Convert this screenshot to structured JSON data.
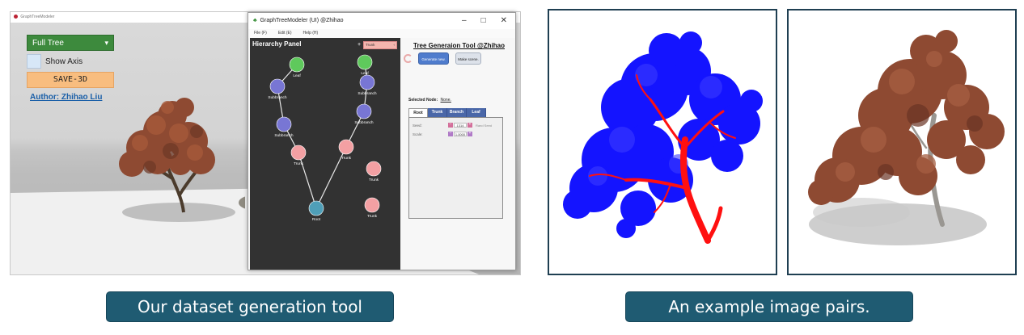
{
  "scene": {
    "window_title": "GraphTreeModeler",
    "mode_dropdown": "Full Tree",
    "show_axis_label": "Show Axis",
    "save_button": "SAVE-3D",
    "author_link": "Author: Zhihao Liu"
  },
  "window": {
    "title": "GraphTreeModeler (UI) @Zhihao",
    "controls": [
      "–",
      "□",
      "✕"
    ],
    "menu": [
      "File (F)",
      "Edit (E)",
      "Help (H)"
    ],
    "hierarchy": {
      "title": "Hierarchy Panel",
      "add": "+",
      "type_select": "Trunk",
      "type_select_arrow": "‹",
      "nodes": [
        {
          "label": "Leaf",
          "color": "#5fc95c"
        },
        {
          "label": "Subbranch",
          "color": "#7876d4"
        },
        {
          "label": "Subbranch",
          "color": "#7876d4"
        },
        {
          "label": "Trunk",
          "color": "#f3a0a3"
        },
        {
          "label": "Root",
          "color": "#4f9fb8"
        },
        {
          "label": "Leaf",
          "color": "#5fc95c"
        },
        {
          "label": "Subbranch",
          "color": "#7876d4"
        },
        {
          "label": "Subbranch",
          "color": "#7876d4"
        },
        {
          "label": "Trunk",
          "color": "#f3a0a3"
        },
        {
          "label": "Trunk",
          "color": "#f3a0a3"
        },
        {
          "label": "Trunk",
          "color": "#f3a0a3"
        }
      ]
    },
    "tool_title": "Tree Generaion Tool @Zhihao",
    "generate_button": "Generate new.",
    "make_scene_button": "Make scene.",
    "selected_node_label": "Selected Node:",
    "selected_node_value": "None.",
    "tabs": [
      "Root",
      "Trunk",
      "Branch",
      "Leaf"
    ],
    "seed": {
      "label": "Seed:",
      "value": "1314",
      "hint": "Rand Seed"
    },
    "scale": {
      "label": "Scale:",
      "value": "1.0000"
    }
  },
  "captions": {
    "left": "Our dataset generation tool",
    "right": "An example image pairs."
  },
  "colors": {
    "caption_bg": "#1f5b72",
    "accent_green": "#3d8a3d",
    "save_orange": "#f8bd7f",
    "link_blue": "#1a5fa8",
    "skeleton_red": "#ff0000",
    "foliage_blue": "#1010ff",
    "foliage_brown": "#8e4a32"
  }
}
